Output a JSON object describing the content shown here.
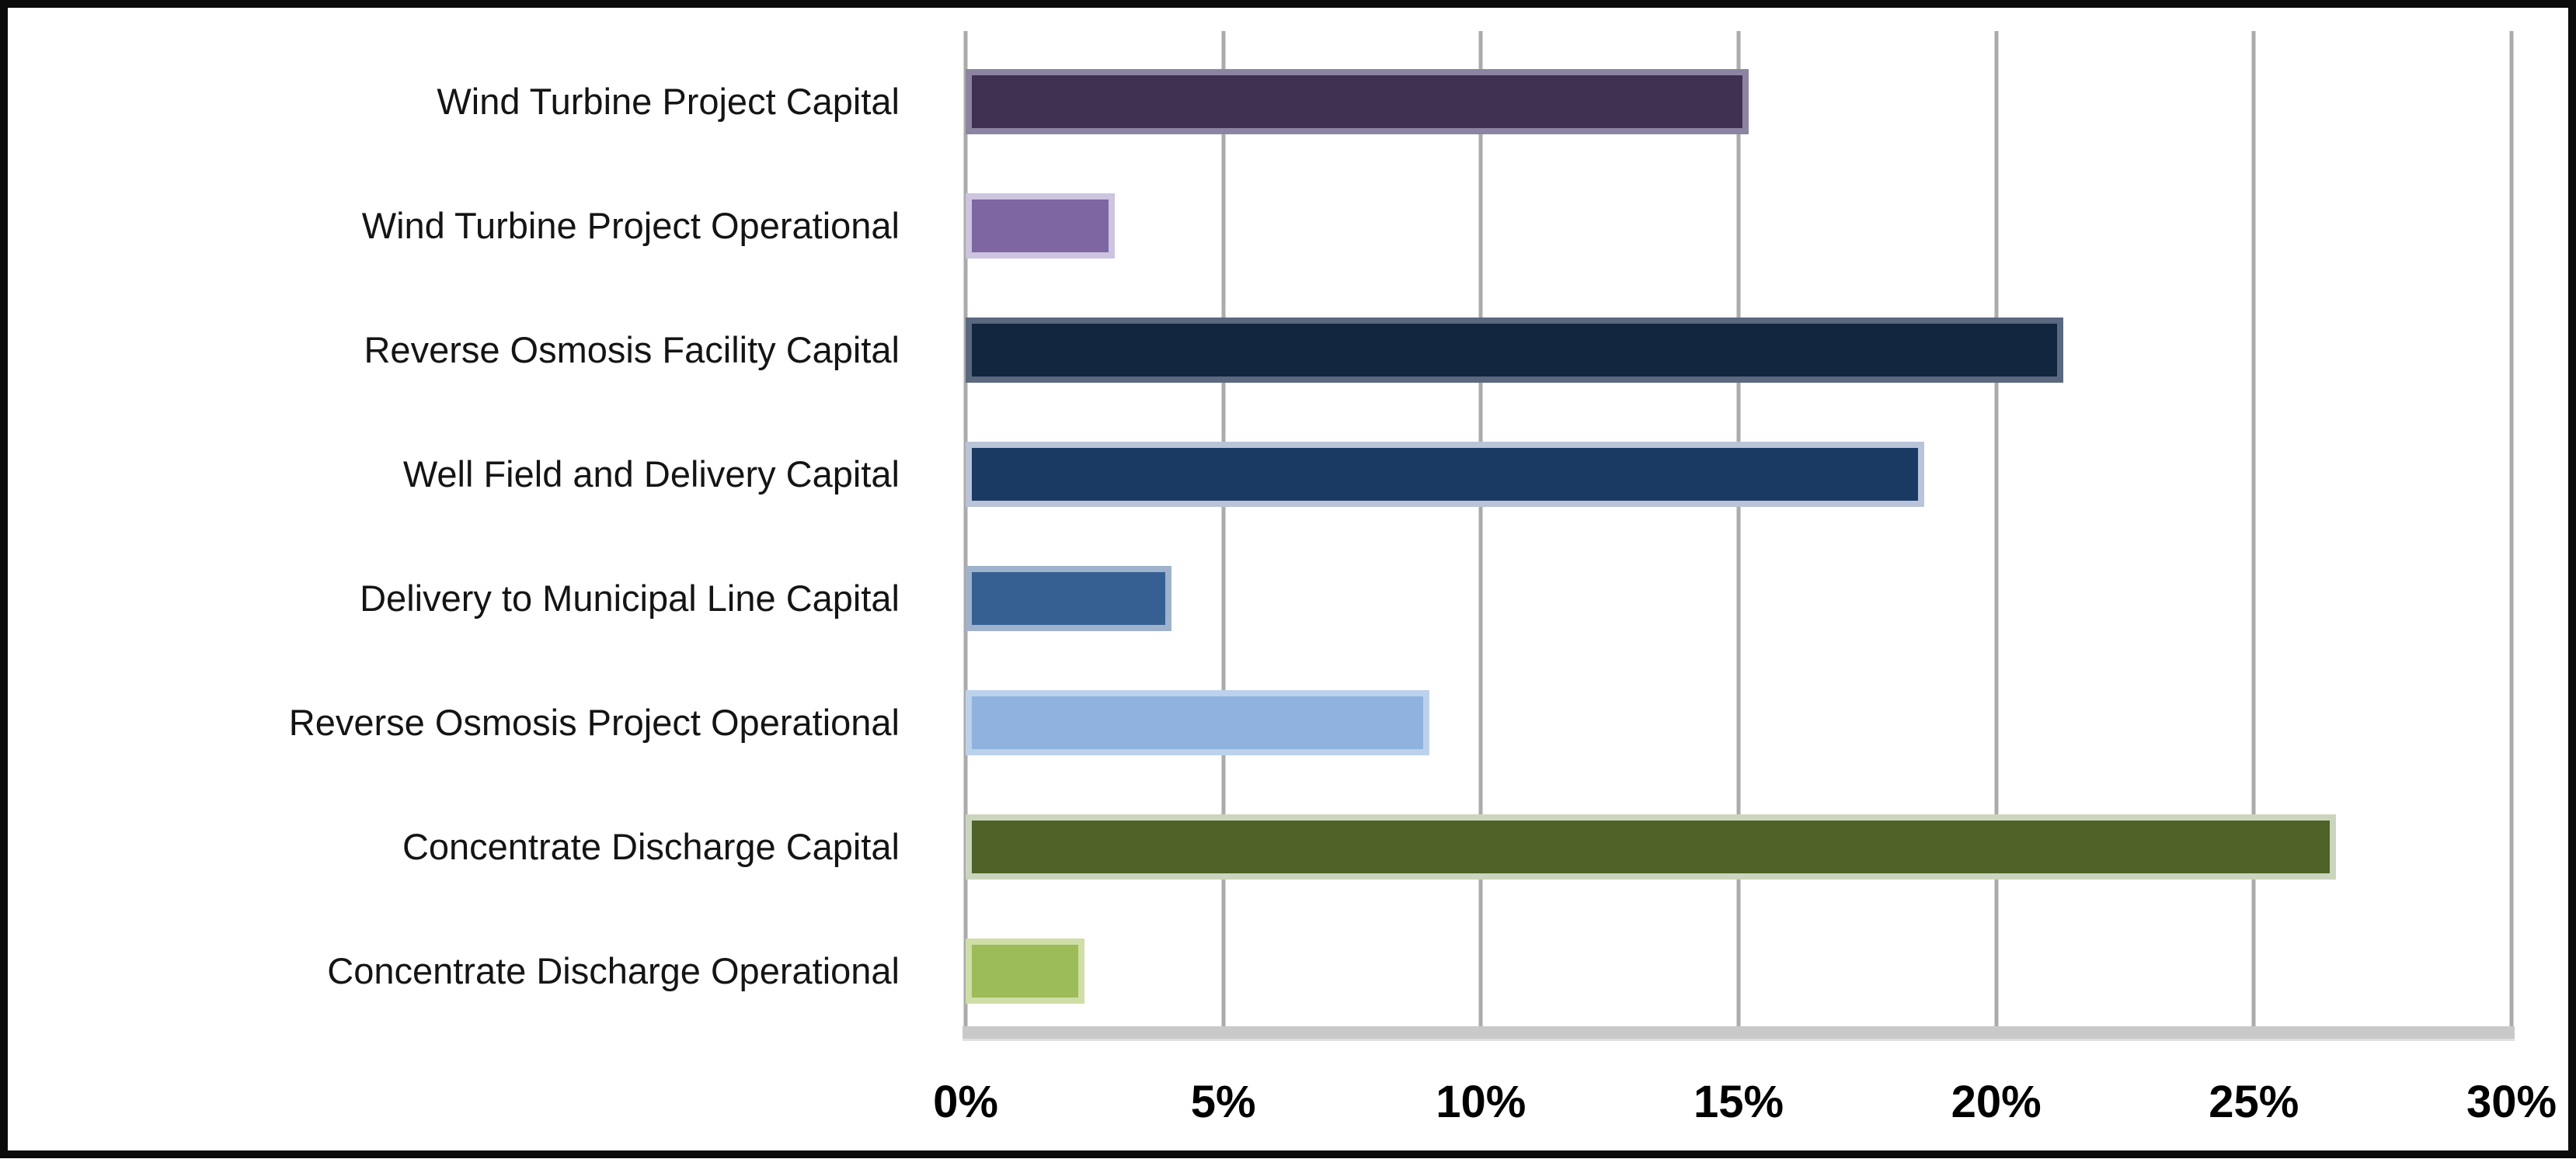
{
  "chart_data": {
    "type": "bar",
    "orientation": "horizontal",
    "title": "",
    "xlabel": "",
    "ylabel": "",
    "grid": true,
    "legend": false,
    "xlim": [
      0,
      30
    ],
    "x_ticks": [
      "0%",
      "5%",
      "10%",
      "15%",
      "20%",
      "25%",
      "30%"
    ],
    "x_tick_values": [
      0,
      5,
      10,
      15,
      20,
      25,
      30
    ],
    "categories": [
      "Wind Turbine Project Capital",
      "Wind Turbine Project Operational",
      "Reverse Osmosis Facility Capital",
      "Well Field and Delivery Capital",
      "Delivery to Municipal Line Capital",
      "Reverse Osmosis Project Operational",
      "Concentrate Discharge Capital",
      "Concentrate Discharge Operational"
    ],
    "values": [
      15.2,
      2.9,
      21.3,
      18.6,
      4.0,
      9.0,
      26.6,
      2.3
    ],
    "bar_fill_colors": [
      "#3F3151",
      "#7E66A3",
      "#13263F",
      "#1B3A63",
      "#366092",
      "#8FB3DE",
      "#4F6228",
      "#9CBB59"
    ],
    "bar_edge_colors": [
      "#8C84A1",
      "#CDC4DF",
      "#5A6880",
      "#B9C4D8",
      "#9FB2CC",
      "#BCD1EA",
      "#CBD5BE",
      "#CFDEA6"
    ],
    "gridline_color": "#ABABAB",
    "axis_line_color": "#C9C9C9",
    "frame_border_color": "#0B0B0B",
    "background_color": "#FFFFFF"
  }
}
